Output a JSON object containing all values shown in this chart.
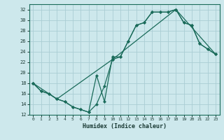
{
  "background_color": "#cde8ec",
  "grid_color": "#aacdd4",
  "line_color": "#1a6b5a",
  "xlabel": "Humidex (Indice chaleur)",
  "ylim": [
    12,
    33
  ],
  "xlim": [
    -0.5,
    23.5
  ],
  "yticks": [
    12,
    14,
    16,
    18,
    20,
    22,
    24,
    26,
    28,
    30,
    32
  ],
  "xticks": [
    0,
    1,
    2,
    3,
    4,
    5,
    6,
    7,
    8,
    9,
    10,
    11,
    12,
    13,
    14,
    15,
    16,
    17,
    18,
    19,
    20,
    21,
    22,
    23
  ],
  "line1_x": [
    0,
    1,
    2,
    3,
    4,
    5,
    6,
    7,
    8,
    9,
    10,
    11,
    12,
    13,
    14,
    15,
    16,
    17,
    18,
    19,
    20,
    21,
    22,
    23
  ],
  "line1_y": [
    18,
    16.5,
    16,
    15,
    14.5,
    13.5,
    13,
    12.5,
    19.5,
    14.5,
    23,
    23,
    26,
    29,
    29.5,
    31.5,
    31.5,
    31.5,
    32,
    29.5,
    29,
    25.5,
    24.5,
    23.5
  ],
  "line2_x": [
    0,
    1,
    2,
    3,
    4,
    5,
    6,
    7,
    8,
    9,
    10,
    11,
    12,
    13,
    14,
    15,
    16,
    17,
    18,
    19,
    20,
    21,
    22,
    23
  ],
  "line2_y": [
    18,
    16.5,
    16,
    15,
    14.5,
    13.5,
    13,
    12.5,
    14,
    17.5,
    22.5,
    23,
    26,
    29,
    29.5,
    31.5,
    31.5,
    31.5,
    32,
    29.5,
    29,
    25.5,
    24.5,
    23.5
  ],
  "line3_x": [
    0,
    3,
    10,
    18,
    23
  ],
  "line3_y": [
    18,
    15,
    22.5,
    32,
    23.5
  ],
  "tick_fontsize": 5,
  "xlabel_fontsize": 6
}
